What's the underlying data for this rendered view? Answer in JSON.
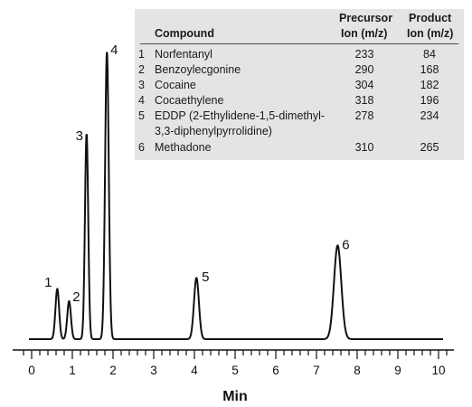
{
  "chart_data": {
    "type": "line",
    "xlabel": "Min",
    "xlim": [
      0,
      10
    ],
    "x_ticks": [
      "0",
      "1",
      "2",
      "3",
      "4",
      "5",
      "6",
      "7",
      "8",
      "9",
      "10"
    ],
    "peaks": [
      {
        "label": "1",
        "x": 0.63,
        "height": 0.175
      },
      {
        "label": "2",
        "x": 0.92,
        "height": 0.132
      },
      {
        "label": "3",
        "x": 1.35,
        "height": 0.715
      },
      {
        "label": "4",
        "x": 1.85,
        "height": 1.0
      },
      {
        "label": "5",
        "x": 4.05,
        "height": 0.213
      },
      {
        "label": "6",
        "x": 7.52,
        "height": 0.325
      }
    ]
  },
  "table": {
    "headers": {
      "compound": "Compound",
      "precursor_line1": "Precursor",
      "precursor_line2": "Ion (m/z)",
      "product_line1": "Product",
      "product_line2": "Ion (m/z)"
    },
    "rows": [
      {
        "num": "1",
        "name": "Norfentanyl",
        "precursor": "233",
        "product": "84"
      },
      {
        "num": "2",
        "name": "Benzoylecgonine",
        "precursor": "290",
        "product": "168"
      },
      {
        "num": "3",
        "name": "Cocaine",
        "precursor": "304",
        "product": "182"
      },
      {
        "num": "4",
        "name": "Cocaethylene",
        "precursor": "318",
        "product": "196"
      },
      {
        "num": "5",
        "name": "EDDP (2-Ethylidene-1,5-dimethyl-",
        "name2": "3,3-diphenylpyrrolidine)",
        "precursor": "278",
        "product": "234"
      },
      {
        "num": "6",
        "name": "Methadone",
        "precursor": "310",
        "product": "265"
      }
    ]
  }
}
